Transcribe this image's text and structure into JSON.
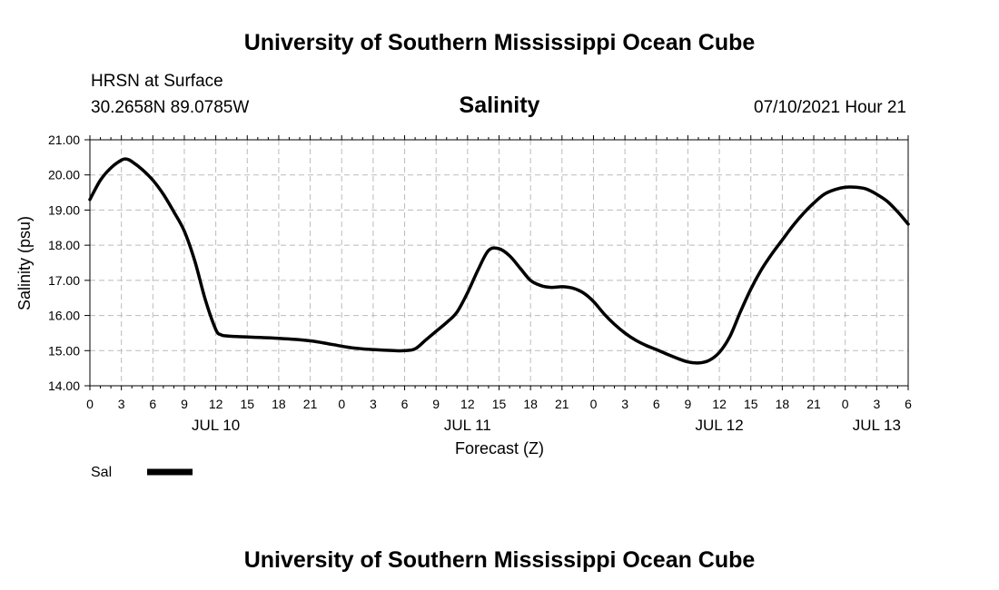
{
  "header": {
    "title_top": "University of Southern Mississippi Ocean Cube",
    "station": "HRSN at Surface",
    "coords": "30.2658N  89.0785W",
    "variable": "Salinity",
    "datetime": "07/10/2021 Hour 21",
    "title_bottom": "University of Southern Mississippi Ocean Cube"
  },
  "colors": {
    "line": "#000000",
    "grid": "#bbbbbb",
    "axis": "#000000"
  },
  "chart_data": {
    "type": "line",
    "title": "Salinity",
    "xlabel": "Forecast (Z)",
    "ylabel": "Salinity (psu)",
    "ylim": [
      14.0,
      21.0
    ],
    "xlim": [
      0,
      78
    ],
    "x_unit": "hours from Jul 10 00Z",
    "y_ticks": [
      "14.00",
      "15.00",
      "16.00",
      "17.00",
      "18.00",
      "19.00",
      "20.00",
      "21.00"
    ],
    "y_tick_values": [
      14,
      15,
      16,
      17,
      18,
      19,
      20,
      21
    ],
    "x_tick_labels": [
      "0",
      "3",
      "6",
      "9",
      "12",
      "15",
      "18",
      "21",
      "0",
      "3",
      "6",
      "9",
      "12",
      "15",
      "18",
      "21",
      "0",
      "3",
      "6",
      "9",
      "12",
      "15",
      "18",
      "21",
      "0",
      "3",
      "6"
    ],
    "x_tick_values": [
      0,
      3,
      6,
      9,
      12,
      15,
      18,
      21,
      24,
      27,
      30,
      33,
      36,
      39,
      42,
      45,
      48,
      51,
      54,
      57,
      60,
      63,
      66,
      69,
      72,
      75,
      78
    ],
    "day_labels": [
      {
        "label": "JUL 10",
        "x": 12
      },
      {
        "label": "JUL 11",
        "x": 36
      },
      {
        "label": "JUL 12",
        "x": 60
      },
      {
        "label": "JUL 13",
        "x": 75
      }
    ],
    "legend": [
      {
        "name": "Sal"
      }
    ],
    "series": [
      {
        "name": "Sal",
        "x": [
          0,
          1,
          2,
          3,
          3.5,
          4,
          5,
          6,
          7,
          8,
          9,
          10,
          11,
          12,
          12.5,
          13,
          14,
          18,
          21,
          23,
          25,
          27,
          29,
          30,
          31,
          32,
          33,
          34,
          35,
          36,
          37,
          38,
          39,
          40,
          41,
          42,
          43,
          44,
          45,
          46,
          47,
          48,
          49,
          50,
          51,
          52,
          53,
          54,
          55,
          56,
          57,
          58,
          59,
          60,
          61,
          62,
          63,
          64,
          65,
          66,
          67,
          68,
          69,
          70,
          71,
          72,
          73,
          74,
          75,
          76,
          77,
          78
        ],
        "values": [
          19.3,
          19.85,
          20.2,
          20.42,
          20.45,
          20.38,
          20.15,
          19.85,
          19.45,
          18.95,
          18.4,
          17.55,
          16.45,
          15.6,
          15.45,
          15.42,
          15.4,
          15.35,
          15.28,
          15.18,
          15.08,
          15.03,
          15.0,
          15.0,
          15.05,
          15.3,
          15.55,
          15.8,
          16.1,
          16.65,
          17.3,
          17.85,
          17.9,
          17.7,
          17.35,
          17.0,
          16.85,
          16.8,
          16.82,
          16.78,
          16.65,
          16.4,
          16.05,
          15.75,
          15.5,
          15.3,
          15.15,
          15.03,
          14.9,
          14.78,
          14.68,
          14.65,
          14.72,
          14.95,
          15.4,
          16.1,
          16.75,
          17.3,
          17.75,
          18.15,
          18.55,
          18.9,
          19.2,
          19.45,
          19.58,
          19.65,
          19.65,
          19.6,
          19.45,
          19.25,
          18.95,
          18.6
        ]
      }
    ]
  }
}
